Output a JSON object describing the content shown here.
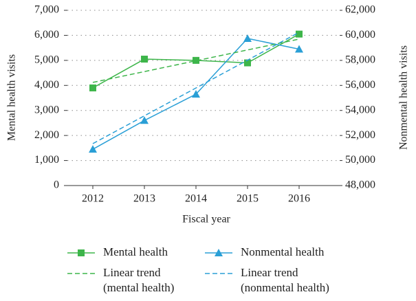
{
  "chart_data": {
    "type": "line",
    "x_label": "Fiscal year",
    "y_label": "Mental health visits",
    "y2_label": "Nonmental health visits",
    "categories": [
      "2012",
      "2013",
      "2014",
      "2015",
      "2016"
    ],
    "series": [
      {
        "name": "Mental health",
        "color": "#3db54a",
        "marker": "square",
        "dash": false,
        "values": [
          3900,
          5050,
          5000,
          4900,
          6050
        ]
      },
      {
        "name": "Nonmental health",
        "color": "#2a9fd6",
        "marker": "triangle",
        "dash": false,
        "axis": "y2",
        "values": [
          50900,
          53200,
          55300,
          59750,
          58900
        ]
      },
      {
        "name": "Linear trend\n(mental health)",
        "color": "#3db54a",
        "dash": true,
        "values": [
          4120,
          4552,
          4985,
          5417,
          5850
        ]
      },
      {
        "name": "Linear trend\n(nonmental health)",
        "color": "#2a9fd6",
        "dash": true,
        "axis": "y2",
        "values": [
          51350,
          53572,
          55795,
          58018,
          60240
        ]
      }
    ],
    "ylim": [
      0,
      7000
    ],
    "yticks": [
      0,
      {
        "value": 1000,
        "label": "1,000"
      },
      {
        "value": 2000,
        "label": "2,000"
      },
      {
        "value": 3000,
        "label": "3,000"
      },
      {
        "value": 4000,
        "label": "4,000"
      },
      {
        "value": 5000,
        "label": "5,000"
      },
      {
        "value": 6000,
        "label": "6,000"
      },
      {
        "value": 7000,
        "label": "7,000"
      }
    ],
    "y2lim": [
      48000,
      62000
    ],
    "y2ticks": [
      {
        "value": 48000,
        "label": "48,000"
      },
      {
        "value": 50000,
        "label": "50,000"
      },
      {
        "value": 52000,
        "label": "52,000"
      },
      {
        "value": 54000,
        "label": "54,000"
      },
      {
        "value": 56000,
        "label": "56,000"
      },
      {
        "value": 58000,
        "label": "58,000"
      },
      {
        "value": 60000,
        "label": "60,000"
      },
      {
        "value": 62000,
        "label": "62,000"
      }
    ],
    "grid": true
  }
}
